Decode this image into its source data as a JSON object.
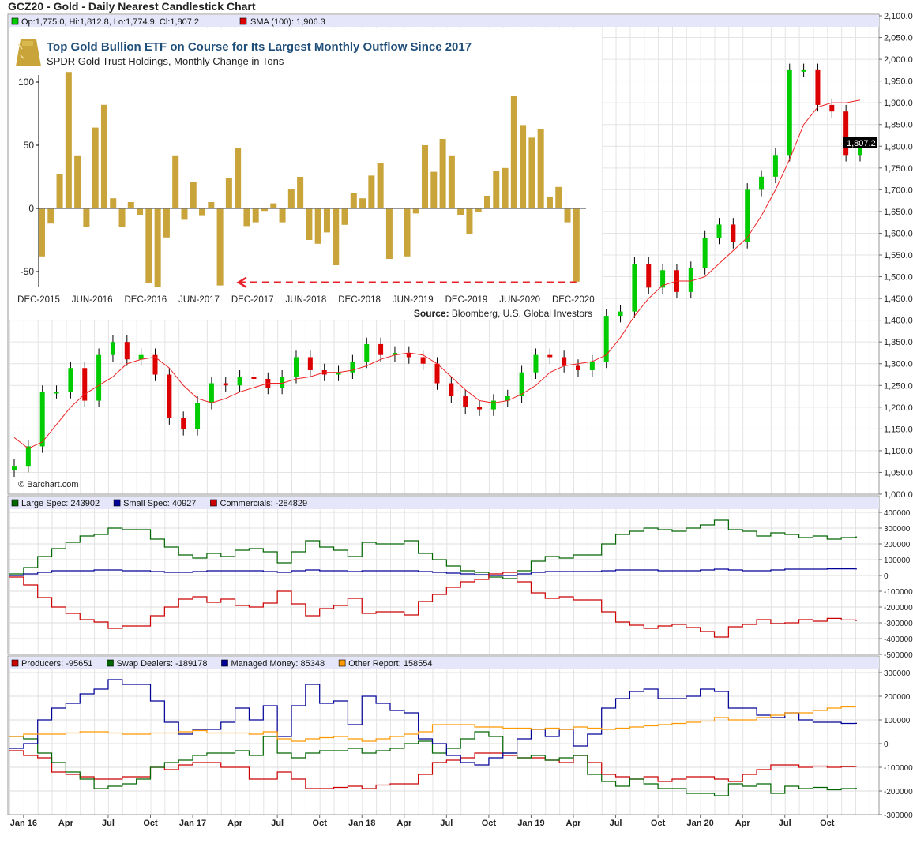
{
  "title": "GCZ20 - Gold - Daily Nearest Candlestick Chart",
  "main": {
    "ohlc": "Op:1,775.0, Hi:1,812.8, Lo:1,774.9, Cl:1,807.2",
    "sma": "SMA (100): 1,906.3",
    "last_price": "1,807.2",
    "watermark": "© Barchart.com",
    "colors": {
      "up": "#00cc00",
      "down": "#dd0000",
      "sma": "#ee2222",
      "legend_band": "#e6e6fa"
    }
  },
  "inset": {
    "title": "Top Gold Bullion ETF on Course for Its Largest Monthly Outflow Since 2017",
    "subtitle": "SPDR Gold Trust Holdings, Monthly Change in Tons",
    "source_label": "Source:",
    "source": " Bloomberg, U.S. Global Investors",
    "logo_icon": "gold-bar-icon",
    "colors": {
      "bar": "#c9a43a",
      "title": "#1f4e79",
      "arrow": "#e8202a"
    }
  },
  "chart_data": [
    {
      "type": "candlestick",
      "title": "GCZ20 - Gold - Daily Nearest Candlestick Chart",
      "ylim": [
        1000,
        2100
      ],
      "y_ticks": [
        "2,100.0",
        "2,050.0",
        "2,000.0",
        "1,950.0",
        "1,900.0",
        "1,850.0",
        "1,800.0",
        "1,750.0",
        "1,700.0",
        "1,650.0",
        "1,600.0",
        "1,550.0",
        "1,500.0",
        "1,450.0",
        "1,400.0",
        "1,350.0",
        "1,300.0",
        "1,250.0",
        "1,200.0",
        "1,150.0",
        "1,100.0",
        "1,050.0",
        "1,000.0"
      ],
      "x_ticks": [
        [
          "Jan 16",
          "2016-01"
        ],
        [
          "Apr",
          "2016-04"
        ],
        [
          "Jul",
          "2016-07"
        ],
        [
          "Oct",
          "2016-10"
        ],
        [
          "Jan 17",
          "2017-01"
        ],
        [
          "Apr",
          "2017-04"
        ],
        [
          "Jul",
          "2017-07"
        ],
        [
          "Oct",
          "2017-10"
        ],
        [
          "Jan 18",
          "2018-01"
        ],
        [
          "Apr",
          "2018-04"
        ],
        [
          "Jul",
          "2018-07"
        ],
        [
          "Oct",
          "2018-10"
        ],
        [
          "Jan 19",
          "2019-01"
        ],
        [
          "Apr",
          "2019-04"
        ],
        [
          "Jul",
          "2019-07"
        ],
        [
          "Oct",
          "2019-10"
        ],
        [
          "Jan 20",
          "2020-01"
        ],
        [
          "Apr",
          "2020-04"
        ],
        [
          "Jul",
          "2020-07"
        ],
        [
          "Oct",
          "2020-10"
        ]
      ],
      "period": [
        "2015-12",
        "2020-12"
      ],
      "close": [
        1065,
        1110,
        1235,
        1235,
        1290,
        1215,
        1320,
        1350,
        1310,
        1320,
        1275,
        1175,
        1150,
        1210,
        1255,
        1250,
        1270,
        1265,
        1245,
        1270,
        1315,
        1285,
        1275,
        1280,
        1305,
        1345,
        1320,
        1325,
        1315,
        1300,
        1255,
        1225,
        1200,
        1195,
        1215,
        1225,
        1280,
        1320,
        1315,
        1295,
        1285,
        1305,
        1410,
        1420,
        1530,
        1475,
        1515,
        1465,
        1520,
        1590,
        1620,
        1580,
        1700,
        1730,
        1780,
        1975,
        1975,
        1895,
        1880,
        1780,
        1807.2
      ],
      "sma_100": [
        1130,
        1105,
        1120,
        1160,
        1200,
        1230,
        1250,
        1270,
        1300,
        1310,
        1315,
        1290,
        1250,
        1220,
        1210,
        1220,
        1235,
        1245,
        1255,
        1255,
        1265,
        1270,
        1280,
        1280,
        1285,
        1295,
        1310,
        1320,
        1325,
        1320,
        1300,
        1270,
        1240,
        1215,
        1210,
        1215,
        1230,
        1250,
        1280,
        1295,
        1300,
        1305,
        1320,
        1360,
        1410,
        1450,
        1480,
        1490,
        1490,
        1500,
        1530,
        1560,
        1590,
        1640,
        1700,
        1770,
        1850,
        1890,
        1900,
        1900,
        1906.3
      ]
    },
    {
      "type": "bar",
      "title": "Top Gold Bullion ETF on Course for Its Largest Monthly Outflow Since 2017",
      "subtitle": "SPDR Gold Trust Holdings, Monthly Change in Tons",
      "ylim": [
        -65,
        110
      ],
      "y_ticks": [
        100,
        50,
        0,
        -50
      ],
      "tick_labels": [
        "DEC-2015",
        "JUN-2016",
        "DEC-2016",
        "JUN-2017",
        "DEC-2017",
        "JUN-2018",
        "DEC-2018",
        "JUN-2019",
        "DEC-2019",
        "JUN-2020",
        "DEC-2020"
      ],
      "categories": [
        "Dec-2015",
        "Jan-2016",
        "Feb-2016",
        "Mar-2016",
        "Apr-2016",
        "May-2016",
        "Jun-2016",
        "Jul-2016",
        "Aug-2016",
        "Sep-2016",
        "Oct-2016",
        "Nov-2016",
        "Dec-2016",
        "Jan-2017",
        "Feb-2017",
        "Mar-2017",
        "Apr-2017",
        "May-2017",
        "Jun-2017",
        "Jul-2017",
        "Aug-2017",
        "Sep-2017",
        "Oct-2017",
        "Nov-2017",
        "Dec-2017",
        "Jan-2018",
        "Feb-2018",
        "Mar-2018",
        "Apr-2018",
        "May-2018",
        "Jun-2018",
        "Jul-2018",
        "Aug-2018",
        "Sep-2018",
        "Oct-2018",
        "Nov-2018",
        "Dec-2018",
        "Jan-2019",
        "Feb-2019",
        "Mar-2019",
        "Apr-2019",
        "May-2019",
        "Jun-2019",
        "Jul-2019",
        "Aug-2019",
        "Sep-2019",
        "Oct-2019",
        "Nov-2019",
        "Dec-2019",
        "Jan-2020",
        "Feb-2020",
        "Mar-2020",
        "Apr-2020",
        "May-2020",
        "Jun-2020",
        "Jul-2020",
        "Aug-2020",
        "Sep-2020",
        "Oct-2020",
        "Nov-2020",
        "Dec-2020"
      ],
      "values": [
        -38,
        -12,
        27,
        108,
        42,
        -15,
        64,
        82,
        8,
        -15,
        5,
        -5,
        -59,
        -62,
        -23,
        42,
        -9,
        21,
        -6,
        5,
        -61,
        24,
        48,
        -14,
        -11,
        -2,
        4,
        -11,
        15,
        25,
        -25,
        -28,
        -19,
        -45,
        -13,
        12,
        8,
        26,
        36,
        -40,
        0,
        -38,
        -4,
        50,
        29,
        55,
        42,
        -5,
        -20,
        -3,
        10,
        30,
        32,
        89,
        66,
        56,
        63,
        9,
        17,
        -11,
        -58
      ],
      "annotation": "dashed arrow from Dec-2020 back to Sep-2017"
    },
    {
      "type": "line",
      "ylim": [
        -500000,
        400000
      ],
      "y_ticks": [
        "400000",
        "300000",
        "200000",
        "100000",
        "0",
        "-100000",
        "-200000",
        "-300000",
        "-400000",
        "-500000"
      ],
      "period": [
        "2015-12",
        "2020-12"
      ],
      "series": [
        {
          "name": "Large Spec",
          "legend": "Large Spec: 243902",
          "color": "#006600",
          "values": [
            10000,
            50000,
            120000,
            170000,
            210000,
            250000,
            260000,
            300000,
            290000,
            290000,
            230000,
            180000,
            130000,
            110000,
            140000,
            120000,
            160000,
            170000,
            150000,
            80000,
            150000,
            220000,
            180000,
            160000,
            120000,
            210000,
            200000,
            200000,
            220000,
            140000,
            100000,
            60000,
            30000,
            20000,
            -10000,
            -20000,
            30000,
            90000,
            120000,
            110000,
            130000,
            130000,
            200000,
            260000,
            280000,
            300000,
            290000,
            280000,
            300000,
            320000,
            350000,
            290000,
            280000,
            250000,
            270000,
            260000,
            240000,
            250000,
            230000,
            240000,
            243902
          ]
        },
        {
          "name": "Small Spec",
          "legend": "Small Spec: 40927",
          "color": "#000099",
          "values": [
            0,
            10000,
            20000,
            30000,
            30000,
            30000,
            35000,
            35000,
            30000,
            30000,
            25000,
            20000,
            20000,
            25000,
            30000,
            30000,
            30000,
            30000,
            25000,
            20000,
            30000,
            35000,
            30000,
            30000,
            25000,
            30000,
            30000,
            30000,
            30000,
            25000,
            20000,
            15000,
            10000,
            5000,
            0,
            0,
            10000,
            20000,
            25000,
            25000,
            25000,
            25000,
            30000,
            35000,
            35000,
            35000,
            30000,
            30000,
            30000,
            35000,
            40000,
            35000,
            30000,
            30000,
            35000,
            40000,
            40000,
            40000,
            42000,
            42000,
            40927
          ]
        },
        {
          "name": "Commercials",
          "legend": "Commercials: -284829",
          "color": "#cc0000",
          "values": [
            -10000,
            -60000,
            -140000,
            -200000,
            -240000,
            -280000,
            -295000,
            -335000,
            -320000,
            -320000,
            -255000,
            -200000,
            -150000,
            -135000,
            -170000,
            -150000,
            -190000,
            -200000,
            -175000,
            -100000,
            -180000,
            -255000,
            -210000,
            -190000,
            -145000,
            -240000,
            -230000,
            -230000,
            -250000,
            -165000,
            -120000,
            -75000,
            -40000,
            -25000,
            10000,
            20000,
            -40000,
            -110000,
            -145000,
            -135000,
            -155000,
            -155000,
            -230000,
            -295000,
            -315000,
            -335000,
            -320000,
            -310000,
            -330000,
            -355000,
            -390000,
            -325000,
            -310000,
            -280000,
            -305000,
            -300000,
            -280000,
            -290000,
            -272000,
            -282000,
            -284829
          ]
        }
      ]
    },
    {
      "type": "line",
      "ylim": [
        -300000,
        300000
      ],
      "y_ticks": [
        "300000",
        "200000",
        "100000",
        "0",
        "-100000",
        "-200000",
        "-300000"
      ],
      "period": [
        "2015-12",
        "2020-12"
      ],
      "series": [
        {
          "name": "Producers",
          "legend": "Producers: -95651",
          "color": "#cc0000",
          "values": [
            -30000,
            -50000,
            -60000,
            -120000,
            -130000,
            -140000,
            -150000,
            -150000,
            -140000,
            -140000,
            -100000,
            -110000,
            -90000,
            -80000,
            -80000,
            -100000,
            -100000,
            -150000,
            -150000,
            -120000,
            -150000,
            -190000,
            -190000,
            -185000,
            -180000,
            -190000,
            -175000,
            -170000,
            -170000,
            -130000,
            -80000,
            -70000,
            -60000,
            -40000,
            -40000,
            -50000,
            -60000,
            -60000,
            -70000,
            -80000,
            -50000,
            -80000,
            -130000,
            -140000,
            -150000,
            -140000,
            -160000,
            -150000,
            -140000,
            -140000,
            -150000,
            -160000,
            -130000,
            -110000,
            -90000,
            -90000,
            -100000,
            -95000,
            -100000,
            -97000,
            -95651
          ]
        },
        {
          "name": "Swap Dealers",
          "legend": "Swap Dealers: -189178",
          "color": "#006600",
          "values": [
            30000,
            20000,
            -40000,
            -80000,
            -120000,
            -150000,
            -190000,
            -180000,
            -170000,
            -150000,
            -100000,
            -80000,
            -70000,
            -50000,
            -40000,
            -40000,
            -30000,
            -50000,
            30000,
            -40000,
            -60000,
            -40000,
            -30000,
            -30000,
            -20000,
            -40000,
            -30000,
            -20000,
            0,
            10000,
            -40000,
            -20000,
            20000,
            50000,
            30000,
            -40000,
            -60000,
            -50000,
            -70000,
            -60000,
            -50000,
            -130000,
            -160000,
            -180000,
            -150000,
            -170000,
            -190000,
            -190000,
            -210000,
            -210000,
            -220000,
            -170000,
            -180000,
            -170000,
            -210000,
            -180000,
            -190000,
            -185000,
            -195000,
            -190000,
            -189178
          ]
        },
        {
          "name": "Managed Money",
          "legend": "Managed Money: 85348",
          "color": "#000099",
          "values": [
            -20000,
            0,
            100000,
            150000,
            170000,
            210000,
            230000,
            270000,
            250000,
            250000,
            180000,
            90000,
            40000,
            60000,
            60000,
            90000,
            150000,
            100000,
            160000,
            30000,
            160000,
            250000,
            170000,
            180000,
            80000,
            200000,
            170000,
            140000,
            130000,
            20000,
            0,
            -50000,
            -80000,
            -90000,
            -60000,
            -40000,
            20000,
            60000,
            30000,
            60000,
            -10000,
            40000,
            150000,
            190000,
            220000,
            230000,
            190000,
            190000,
            200000,
            230000,
            220000,
            150000,
            150000,
            120000,
            110000,
            130000,
            100000,
            90000,
            90000,
            85000,
            85348
          ]
        },
        {
          "name": "Other Report",
          "legend": "Other Report: 158554",
          "color": "#ff9900",
          "values": [
            30000,
            40000,
            40000,
            40000,
            45000,
            50000,
            50000,
            45000,
            40000,
            40000,
            45000,
            45000,
            50000,
            55000,
            45000,
            45000,
            45000,
            40000,
            50000,
            20000,
            10000,
            20000,
            25000,
            30000,
            20000,
            10000,
            20000,
            30000,
            40000,
            50000,
            80000,
            80000,
            80000,
            70000,
            70000,
            65000,
            65000,
            60000,
            65000,
            60000,
            70000,
            65000,
            60000,
            65000,
            70000,
            75000,
            80000,
            85000,
            90000,
            95000,
            110000,
            100000,
            100000,
            110000,
            120000,
            130000,
            130000,
            140000,
            150000,
            155000,
            158554
          ]
        }
      ]
    }
  ]
}
